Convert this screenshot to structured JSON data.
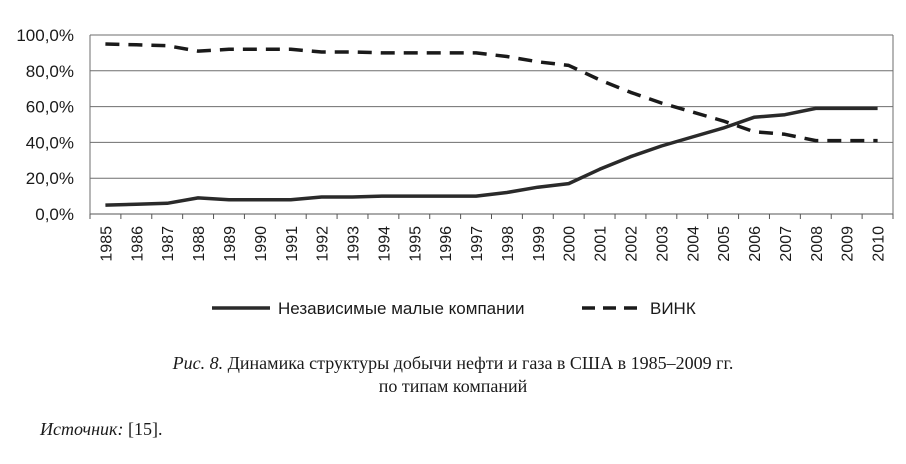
{
  "chart_data": {
    "type": "line",
    "x": [
      "1985",
      "1986",
      "1987",
      "1988",
      "1989",
      "1990",
      "1991",
      "1992",
      "1993",
      "1994",
      "1995",
      "1996",
      "1997",
      "1998",
      "1999",
      "2000",
      "2001",
      "2002",
      "2003",
      "2004",
      "2005",
      "2006",
      "2007",
      "2008",
      "2009",
      "2010"
    ],
    "y_ticks": [
      "0,0%",
      "20,0%",
      "40,0%",
      "60,0%",
      "80,0%",
      "100,0%"
    ],
    "ylim": [
      0,
      100
    ],
    "grid": true,
    "legend_position": "bottom",
    "series": [
      {
        "name": "Независимые малые компании",
        "style": "solid",
        "color": "#2a2a2a",
        "values": [
          5,
          5.5,
          6,
          9,
          8,
          8,
          8,
          9.5,
          9.5,
          10,
          10,
          10,
          10,
          12,
          15,
          17,
          25,
          32,
          38,
          43,
          48,
          54,
          55.5,
          59,
          59,
          59
        ]
      },
      {
        "name": "ВИНК",
        "style": "dashed",
        "color": "#1a1a1a",
        "values": [
          95,
          94.5,
          94,
          91,
          92,
          92,
          92,
          90.5,
          90.5,
          90,
          90,
          90,
          90,
          88,
          85,
          83,
          75,
          68,
          62,
          57,
          52,
          46,
          44.5,
          41,
          41,
          41
        ]
      }
    ]
  },
  "caption": {
    "fig_label": "Рис. 8.",
    "line1_text": " Динамика структуры добычи нефти и газа в США в 1985–2009 гг.",
    "line2_text": "по типам компаний"
  },
  "source": {
    "label": "Источник:",
    "text": " [15]."
  }
}
